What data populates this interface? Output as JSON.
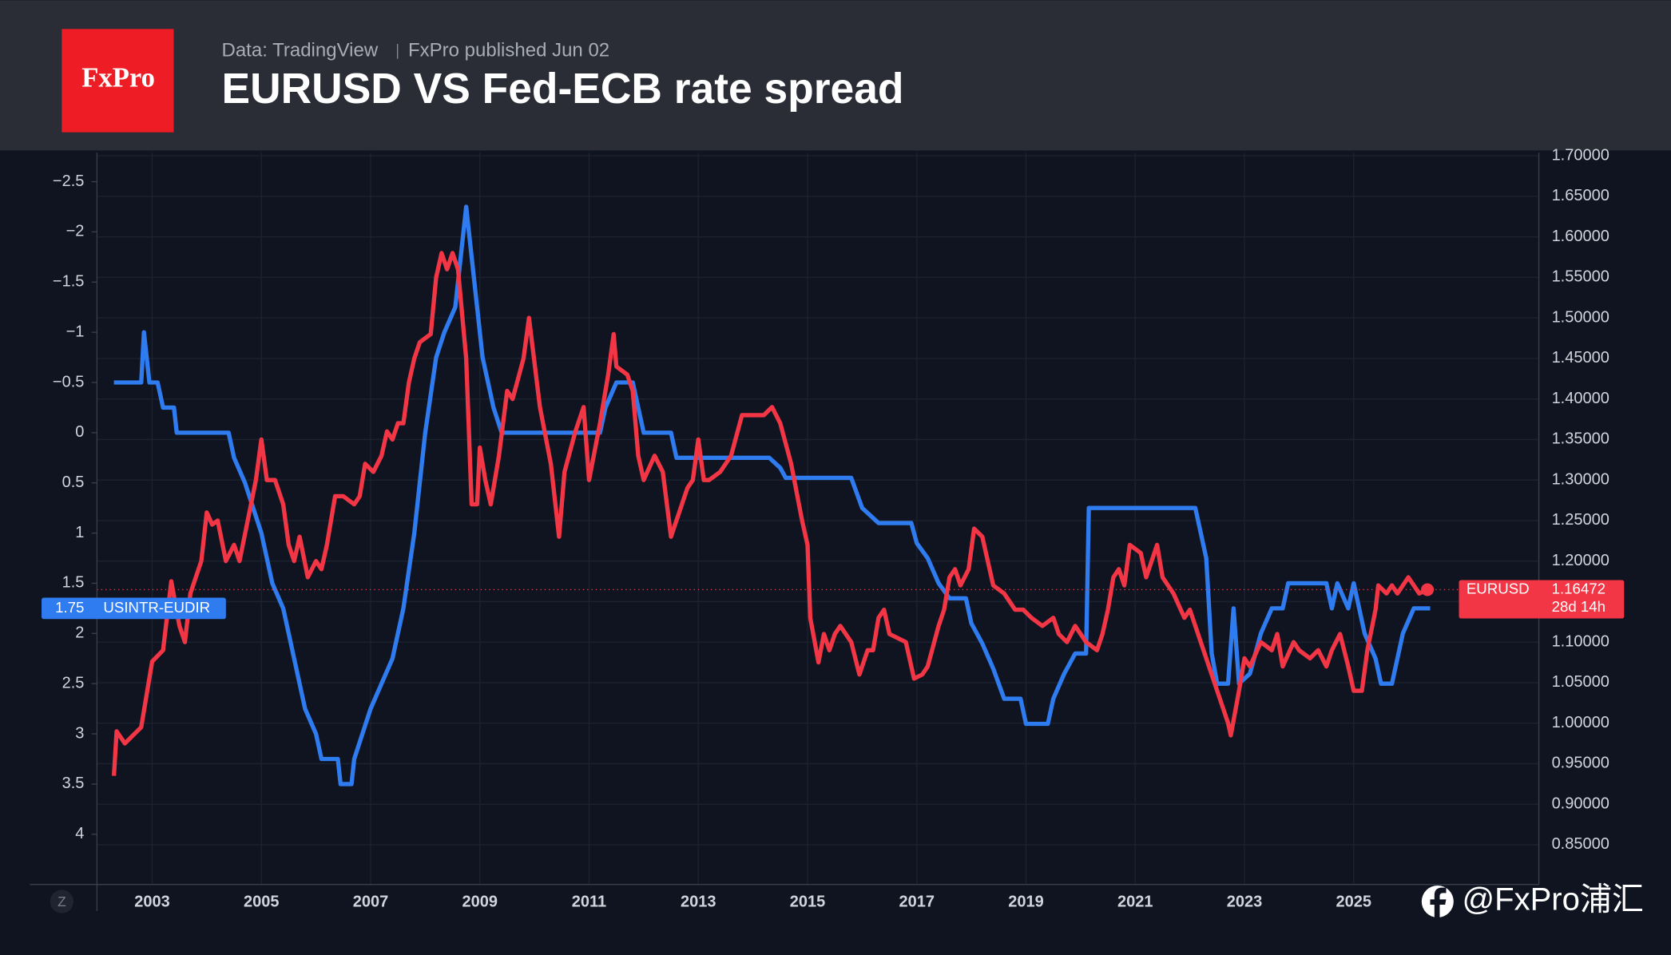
{
  "header": {
    "logo": "FxPro",
    "source": "Data: TradingView",
    "published": "FxPro published Jun 02"
  },
  "ui": {
    "zoom_button": "Z",
    "watermark": "@FxPro浦汇"
  },
  "chart_data": {
    "type": "line",
    "title": "EURUSD VS Fed-ECB rate spread",
    "xlim": [
      2001.99,
      2028.39
    ],
    "xticks": [
      2003,
      2005,
      2007,
      2009,
      2011,
      2013,
      2015,
      2017,
      2019,
      2021,
      2023,
      2025
    ],
    "ylim": [
      4.5,
      -2.79
    ],
    "yticks": [
      {
        "value": -2.5,
        "label": "−2.5"
      },
      {
        "value": -2,
        "label": "−2"
      },
      {
        "value": -1.5,
        "label": "−1.5"
      },
      {
        "value": -1,
        "label": "−1"
      },
      {
        "value": -0.5,
        "label": "−0.5"
      },
      0,
      0.5,
      1,
      1.5,
      2,
      2.5,
      3,
      3.5,
      4
    ],
    "y2lim": [
      0.801,
      1.704
    ],
    "y2ticks": [
      {
        "value": 0.85,
        "label": "0.85000"
      },
      {
        "value": 0.9,
        "label": "0.90000"
      },
      {
        "value": 0.95,
        "label": "0.95000"
      },
      {
        "value": 1.0,
        "label": "1.00000"
      },
      {
        "value": 1.05,
        "label": "1.05000"
      },
      {
        "value": 1.1,
        "label": "1.10000"
      },
      {
        "value": 1.15,
        "label": "1.15000"
      },
      {
        "value": 1.2,
        "label": "1.20000"
      },
      {
        "value": 1.25,
        "label": "1.25000"
      },
      {
        "value": 1.3,
        "label": "1.30000"
      },
      {
        "value": 1.35,
        "label": "1.35000"
      },
      {
        "value": 1.4,
        "label": "1.40000"
      },
      {
        "value": 1.45,
        "label": "1.45000"
      },
      {
        "value": 1.5,
        "label": "1.50000"
      },
      {
        "value": 1.55,
        "label": "1.55000"
      },
      {
        "value": 1.6,
        "label": "1.60000"
      },
      {
        "value": 1.65,
        "label": "1.65000"
      },
      {
        "value": 1.7,
        "label": "1.70000"
      }
    ],
    "grid": true,
    "series": [
      {
        "name": "USINTR-EUDIR",
        "color": "#2f7bf0",
        "axis": "y",
        "x": [
          2002.3,
          2002.8,
          2002.85,
          2002.95,
          2003.1,
          2003.2,
          2003.4,
          2003.45,
          2004.4,
          2004.5,
          2004.7,
          2005.0,
          2005.2,
          2005.4,
          2005.6,
          2005.8,
          2006.0,
          2006.1,
          2006.4,
          2006.45,
          2006.65,
          2006.7,
          2006.85,
          2007.0,
          2007.2,
          2007.4,
          2007.6,
          2007.8,
          2008.0,
          2008.2,
          2008.35,
          2008.55,
          2008.75,
          2008.85,
          2009.05,
          2009.25,
          2009.4,
          2011.2,
          2011.3,
          2011.5,
          2011.8,
          2011.9,
          2012.0,
          2012.5,
          2012.6,
          2014.3,
          2014.5,
          2014.6,
          2015.8,
          2016.0,
          2016.3,
          2016.9,
          2017.0,
          2017.2,
          2017.4,
          2017.6,
          2017.9,
          2018.0,
          2018.2,
          2018.4,
          2018.6,
          2018.9,
          2019.0,
          2019.4,
          2019.5,
          2019.7,
          2019.9,
          2020.1,
          2020.15,
          2022.1,
          2022.2,
          2022.3,
          2022.4,
          2022.5,
          2022.7,
          2022.8,
          2022.9,
          2023.1,
          2023.3,
          2023.5,
          2023.7,
          2023.8,
          2024.5,
          2024.6,
          2024.7,
          2024.9,
          2025.0,
          2025.1,
          2025.2,
          2025.4,
          2025.5,
          2025.7,
          2025.9,
          2026.1,
          2026.4
        ],
        "values": [
          -0.5,
          -0.5,
          -1,
          -0.5,
          -0.5,
          -0.25,
          -0.25,
          0,
          0,
          0.25,
          0.5,
          1,
          1.5,
          1.75,
          2.25,
          2.75,
          3,
          3.25,
          3.25,
          3.5,
          3.5,
          3.25,
          3,
          2.75,
          2.5,
          2.25,
          1.75,
          1,
          0,
          -0.75,
          -1,
          -1.25,
          -2.25,
          -1.75,
          -0.75,
          -0.25,
          0,
          0,
          -0.25,
          -0.5,
          -0.5,
          -0.25,
          0,
          0,
          0.25,
          0.25,
          0.35,
          0.45,
          0.45,
          0.75,
          0.9,
          0.9,
          1.1,
          1.25,
          1.5,
          1.65,
          1.65,
          1.9,
          2.1,
          2.35,
          2.65,
          2.65,
          2.9,
          2.9,
          2.65,
          2.4,
          2.2,
          2.2,
          0.75,
          0.75,
          1,
          1.25,
          2.2,
          2.5,
          2.5,
          1.75,
          2.5,
          2.4,
          2,
          1.75,
          1.75,
          1.5,
          1.5,
          1.75,
          1.5,
          1.75,
          1.5,
          1.75,
          2,
          2.25,
          2.5,
          2.5,
          2,
          1.75,
          1.75
        ]
      },
      {
        "name": "EURUSD",
        "color": "#f23645",
        "axis": "y2",
        "countdown": "28d 14h",
        "x": [
          2002.3,
          2002.35,
          2002.5,
          2002.8,
          2003.0,
          2003.2,
          2003.35,
          2003.5,
          2003.6,
          2003.7,
          2003.9,
          2004.0,
          2004.1,
          2004.2,
          2004.35,
          2004.5,
          2004.6,
          2004.9,
          2005.0,
          2005.1,
          2005.25,
          2005.4,
          2005.5,
          2005.6,
          2005.7,
          2005.85,
          2006.0,
          2006.1,
          2006.2,
          2006.35,
          2006.5,
          2006.7,
          2006.8,
          2006.9,
          2007.05,
          2007.2,
          2007.3,
          2007.4,
          2007.5,
          2007.6,
          2007.7,
          2007.8,
          2007.9,
          2008.1,
          2008.2,
          2008.3,
          2008.4,
          2008.5,
          2008.6,
          2008.75,
          2008.85,
          2008.95,
          2009.0,
          2009.1,
          2009.2,
          2009.35,
          2009.5,
          2009.6,
          2009.8,
          2009.9,
          2010.1,
          2010.3,
          2010.45,
          2010.55,
          2010.75,
          2010.9,
          2011.0,
          2011.2,
          2011.35,
          2011.45,
          2011.5,
          2011.7,
          2011.8,
          2011.9,
          2012.0,
          2012.2,
          2012.35,
          2012.5,
          2012.6,
          2012.8,
          2012.9,
          2013.0,
          2013.1,
          2013.2,
          2013.4,
          2013.6,
          2013.8,
          2014.0,
          2014.2,
          2014.35,
          2014.5,
          2014.7,
          2014.9,
          2015.0,
          2015.05,
          2015.2,
          2015.3,
          2015.4,
          2015.5,
          2015.6,
          2015.8,
          2015.95,
          2016.1,
          2016.2,
          2016.3,
          2016.4,
          2016.5,
          2016.8,
          2016.95,
          2017.1,
          2017.2,
          2017.4,
          2017.5,
          2017.6,
          2017.7,
          2017.8,
          2017.95,
          2018.05,
          2018.2,
          2018.4,
          2018.6,
          2018.8,
          2018.95,
          2019.1,
          2019.3,
          2019.5,
          2019.6,
          2019.75,
          2019.9,
          2020.1,
          2020.3,
          2020.4,
          2020.5,
          2020.6,
          2020.7,
          2020.8,
          2020.9,
          2021.1,
          2021.2,
          2021.4,
          2021.5,
          2021.7,
          2021.9,
          2022.0,
          2022.2,
          2022.4,
          2022.5,
          2022.7,
          2022.75,
          2022.9,
          2023.0,
          2023.1,
          2023.3,
          2023.5,
          2023.6,
          2023.7,
          2023.9,
          2024.0,
          2024.2,
          2024.35,
          2024.5,
          2024.6,
          2024.75,
          2024.9,
          2025.0,
          2025.15,
          2025.25,
          2025.4,
          2025.45,
          2025.6,
          2025.7,
          2025.8,
          2026.0,
          2026.1,
          2026.2,
          2026.35
        ],
        "values": [
          0.935,
          0.99,
          0.975,
          0.995,
          1.076,
          1.09,
          1.175,
          1.12,
          1.1,
          1.16,
          1.2,
          1.26,
          1.245,
          1.25,
          1.2,
          1.22,
          1.2,
          1.3,
          1.35,
          1.3,
          1.3,
          1.27,
          1.22,
          1.2,
          1.23,
          1.18,
          1.2,
          1.19,
          1.22,
          1.28,
          1.28,
          1.27,
          1.28,
          1.32,
          1.31,
          1.33,
          1.36,
          1.35,
          1.37,
          1.37,
          1.42,
          1.45,
          1.47,
          1.48,
          1.55,
          1.58,
          1.56,
          1.58,
          1.56,
          1.45,
          1.27,
          1.27,
          1.34,
          1.3,
          1.27,
          1.33,
          1.41,
          1.4,
          1.45,
          1.5,
          1.39,
          1.32,
          1.23,
          1.31,
          1.36,
          1.39,
          1.3,
          1.37,
          1.43,
          1.48,
          1.44,
          1.43,
          1.41,
          1.33,
          1.3,
          1.33,
          1.31,
          1.23,
          1.25,
          1.29,
          1.3,
          1.35,
          1.3,
          1.3,
          1.31,
          1.33,
          1.38,
          1.38,
          1.38,
          1.39,
          1.37,
          1.32,
          1.25,
          1.22,
          1.13,
          1.075,
          1.11,
          1.09,
          1.11,
          1.12,
          1.1,
          1.06,
          1.09,
          1.09,
          1.13,
          1.14,
          1.11,
          1.1,
          1.055,
          1.06,
          1.07,
          1.12,
          1.14,
          1.18,
          1.19,
          1.17,
          1.19,
          1.24,
          1.23,
          1.17,
          1.16,
          1.14,
          1.14,
          1.13,
          1.12,
          1.13,
          1.11,
          1.1,
          1.12,
          1.1,
          1.09,
          1.11,
          1.14,
          1.18,
          1.19,
          1.17,
          1.22,
          1.21,
          1.18,
          1.22,
          1.18,
          1.16,
          1.13,
          1.14,
          1.1,
          1.06,
          1.04,
          1,
          0.985,
          1.04,
          1.08,
          1.07,
          1.1,
          1.09,
          1.11,
          1.07,
          1.1,
          1.09,
          1.08,
          1.09,
          1.07,
          1.09,
          1.11,
          1.07,
          1.04,
          1.04,
          1.09,
          1.14,
          1.17,
          1.16,
          1.17,
          1.16,
          1.18,
          1.17,
          1.16,
          1.16472
        ]
      }
    ]
  }
}
